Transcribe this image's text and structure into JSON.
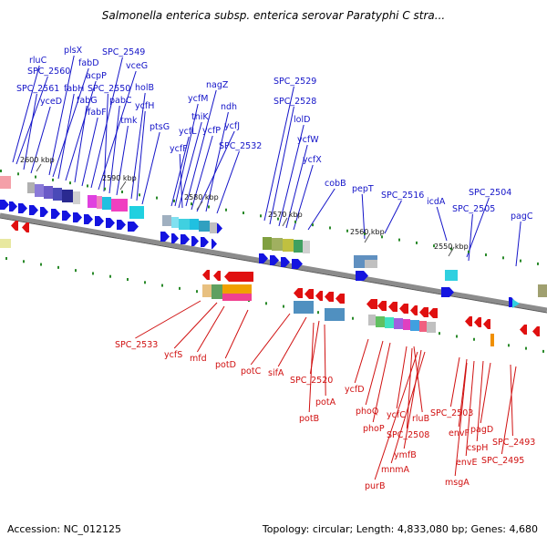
{
  "title": "Salmonella enterica subsp. enterica serovar Paratyphi C stra...",
  "footer": {
    "accession": "Accession: NC_012125",
    "stats": "Topology: circular; Length: 4,833,080 bp; Genes: 4,680"
  },
  "colors": {
    "forward_strand": "#1414e0",
    "reverse_strand": "#e01010",
    "backbone": "#8c8c8c",
    "tick": "#2a8a2a"
  },
  "kbp_ticks": [
    "2600 kbp",
    "2590 kbp",
    "2580 kbp",
    "2570 kbp",
    "2560 kbp",
    "2550 kbp"
  ],
  "top_genes": [
    "rluC",
    "SPC_2560",
    "SPC_2561",
    "yceD",
    "plsX",
    "fabD",
    "fabH",
    "acpP",
    "fabG",
    "fabF",
    "SPC_2549",
    "vceG",
    "SPC_2550",
    "pabC",
    "tmk",
    "holB",
    "ycfH",
    "ptsG",
    "nagZ",
    "ycfM",
    "thiK",
    "ycfL",
    "ycfP",
    "ycfF",
    "ndh",
    "ycfJ",
    "SPC_2532",
    "SPC_2529",
    "SPC_2528",
    "lolD",
    "ycfW",
    "ycfX",
    "cobB",
    "pepT",
    "SPC_2516",
    "icdA",
    "SPC_2504",
    "SPC_2505",
    "pagC"
  ],
  "bottom_genes": [
    "SPC_2533",
    "ycfS",
    "mfd",
    "potD",
    "potC",
    "sifA",
    "SPC_2520",
    "potA",
    "potB",
    "ycfD",
    "phoQ",
    "phoP",
    "ycfC",
    "rluB",
    "SPC_2508",
    "ymfB",
    "mnmA",
    "purB",
    "SPC_2503",
    "envF",
    "cspH",
    "pagD",
    "envE",
    "SPC_2493",
    "SPC_2495",
    "msgA"
  ]
}
